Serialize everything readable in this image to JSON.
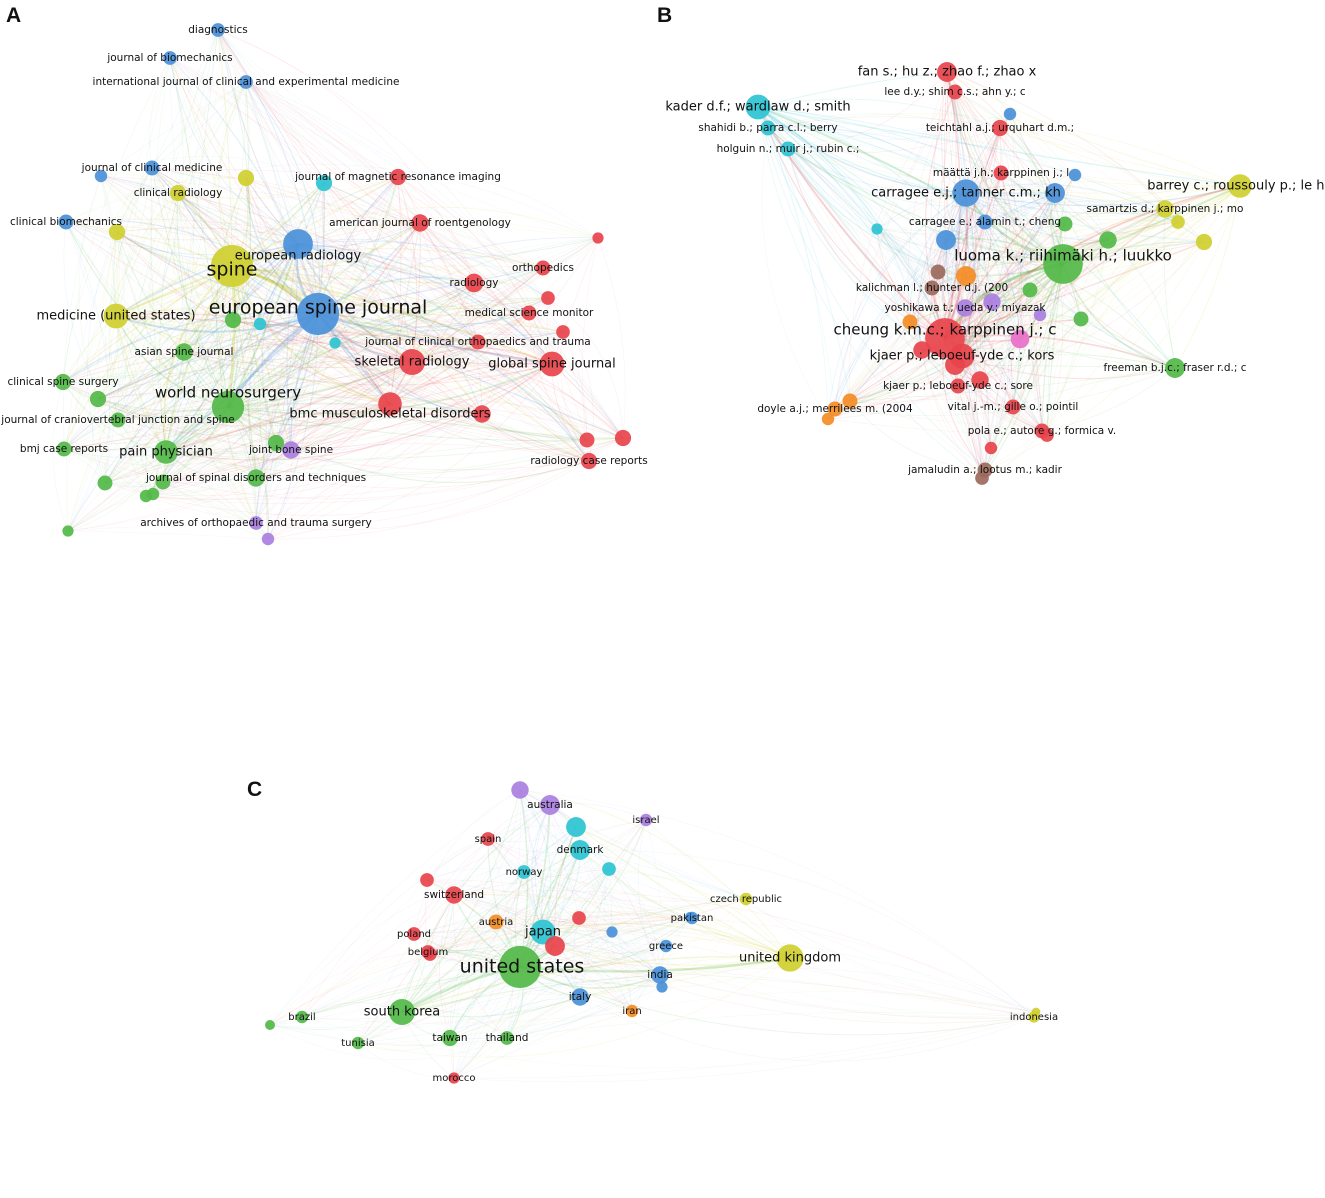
{
  "panels": {
    "A": {
      "label": "A",
      "nodes": [
        {
          "id": "spine",
          "label": "spine",
          "cluster": "yellow",
          "size": 3,
          "tier": 1
        },
        {
          "id": "european-spine-journal",
          "label": "european spine journal",
          "cluster": "blue",
          "size": 3,
          "tier": 1
        },
        {
          "id": "world-neurosurgery",
          "label": "world neurosurgery",
          "cluster": "green",
          "size": 2.2,
          "tier": 2
        },
        {
          "id": "european-radiology",
          "label": "european radiology",
          "cluster": "blue",
          "size": 2,
          "tier": 3
        },
        {
          "id": "skeletal-radiology",
          "label": "skeletal radiology",
          "cluster": "red",
          "size": 1.7,
          "tier": 3
        },
        {
          "id": "global-spine-journal",
          "label": "global spine journal",
          "cluster": "red",
          "size": 1.6,
          "tier": 3
        },
        {
          "id": "bmc-musculoskeletal-disorders",
          "label": "bmc musculoskeletal disorders",
          "cluster": "red",
          "size": 1.5,
          "tier": 3
        },
        {
          "id": "pain-physician",
          "label": "pain physician",
          "cluster": "green",
          "size": 1.5,
          "tier": 3
        },
        {
          "id": "medicine-united-states",
          "label": "medicine (united states)",
          "cluster": "yellow",
          "size": 1.6,
          "tier": 3
        },
        {
          "id": "diagnostics",
          "label": "diagnostics",
          "cluster": "blue",
          "size": 0.7,
          "tier": 4
        },
        {
          "id": "journal-of-biomechanics",
          "label": "journal of biomechanics",
          "cluster": "blue",
          "size": 0.7,
          "tier": 4
        },
        {
          "id": "international-journal-of-clinical-and-experimental-medicine",
          "label": "international journal of clinical and experimental medicine",
          "cluster": "blue",
          "size": 0.7,
          "tier": 4
        },
        {
          "id": "journal-of-clinical-medicine",
          "label": "journal of clinical medicine",
          "cluster": "blue",
          "size": 0.8,
          "tier": 4
        },
        {
          "id": "clinical-radiology",
          "label": "clinical radiology",
          "cluster": "yellow",
          "size": 0.9,
          "tier": 4
        },
        {
          "id": "journal-of-magnetic-resonance-imaging",
          "label": "journal of magnetic resonance imaging",
          "cluster": "red",
          "size": 0.9,
          "tier": 4
        },
        {
          "id": "american-journal-of-roentgenology",
          "label": "american journal of roentgenology",
          "cluster": "red",
          "size": 1,
          "tier": 4
        },
        {
          "id": "clinical-biomechanics",
          "label": "clinical biomechanics",
          "cluster": "blue",
          "size": 0.8,
          "tier": 4
        },
        {
          "id": "orthopedics",
          "label": "orthopedics",
          "cluster": "red",
          "size": 0.8,
          "tier": 4
        },
        {
          "id": "radiology",
          "label": "radiology",
          "cluster": "red",
          "size": 1.1,
          "tier": 4
        },
        {
          "id": "medical-science-monitor",
          "label": "medical science monitor",
          "cluster": "red",
          "size": 0.8,
          "tier": 4
        },
        {
          "id": "journal-of-clinical-orthopaedics-and-trauma",
          "label": "journal of clinical orthopaedics and trauma",
          "cluster": "red",
          "size": 0.8,
          "tier": 4
        },
        {
          "id": "asian-spine-journal",
          "label": "asian spine journal",
          "cluster": "green",
          "size": 1,
          "tier": 4
        },
        {
          "id": "clinical-spine-surgery",
          "label": "clinical spine surgery",
          "cluster": "green",
          "size": 0.9,
          "tier": 4
        },
        {
          "id": "journal-of-craniovertebral-junction-and-spine",
          "label": "journal of craniovertebral junction and spine",
          "cluster": "green",
          "size": 0.8,
          "tier": 4
        },
        {
          "id": "bmj-case-reports",
          "label": "bmj case reports",
          "cluster": "green",
          "size": 0.8,
          "tier": 4
        },
        {
          "id": "joint-bone-spine",
          "label": "joint bone spine",
          "cluster": "purple",
          "size": 1,
          "tier": 4
        },
        {
          "id": "journal-of-spinal-disorders-and-techniques",
          "label": "journal of spinal disorders and techniques",
          "cluster": "green",
          "size": 1,
          "tier": 4
        },
        {
          "id": "radiology-case-reports",
          "label": "radiology case reports",
          "cluster": "red",
          "size": 0.9,
          "tier": 4
        },
        {
          "id": "archives-of-orthopaedic-and-trauma-surgery",
          "label": "archives of orthopaedic and trauma surgery",
          "cluster": "purple",
          "size": 0.7,
          "tier": 4
        }
      ]
    },
    "B": {
      "label": "B",
      "nodes": [
        {
          "id": "luoma-k",
          "label": "luoma k.; riihimäki h.; luukko",
          "cluster": "green",
          "size": 2.8,
          "tier": 2
        },
        {
          "id": "cheung-kmc",
          "label": "cheung k.m.c.; karppinen j.; c",
          "cluster": "red",
          "size": 2.8,
          "tier": 2
        },
        {
          "id": "kader-df",
          "label": "kader d.f.; wardlaw d.; smith",
          "cluster": "cyan",
          "size": 1.6,
          "tier": 3
        },
        {
          "id": "carragee-ej",
          "label": "carragee e.j.; tanner c.m.; kh",
          "cluster": "blue",
          "size": 1.8,
          "tier": 3
        },
        {
          "id": "kjaer-p-1",
          "label": "kjaer p.; leboeuf-yde c.; kors",
          "cluster": "red",
          "size": 1.6,
          "tier": 3
        },
        {
          "id": "barrey-c",
          "label": "barrey c.; roussouly p.; le hu",
          "cluster": "yellow",
          "size": 1.5,
          "tier": 3
        },
        {
          "id": "fan-s",
          "label": "fan s.; hu z.; zhao f.; zhao x",
          "cluster": "red",
          "size": 1.2,
          "tier": 3
        },
        {
          "id": "freeman-bjc",
          "label": "freeman b.j.c.; fraser r.d.; c",
          "cluster": "green",
          "size": 1.2,
          "tier": 4
        },
        {
          "id": "lee-dy",
          "label": "lee d.y.; shim c.s.; ahn y.; c",
          "cluster": "red",
          "size": 0.8,
          "tier": 4
        },
        {
          "id": "shahidi-b",
          "label": "shahidi b.; parra c.l.; berry",
          "cluster": "cyan",
          "size": 0.8,
          "tier": 4
        },
        {
          "id": "holguin-n",
          "label": "holguin n.; muir j.; rubin c.;",
          "cluster": "cyan",
          "size": 0.8,
          "tier": 4
        },
        {
          "id": "teichtahl-aj",
          "label": "teichtahl a.j.; urquhart d.m.;",
          "cluster": "red",
          "size": 0.9,
          "tier": 4
        },
        {
          "id": "maatta-jh",
          "label": "määttä j.h.; karppinen j.; l",
          "cluster": "red",
          "size": 0.8,
          "tier": 4
        },
        {
          "id": "samartzis-d",
          "label": "samartzis d.; karppinen j.; mo",
          "cluster": "yellow",
          "size": 1,
          "tier": 4
        },
        {
          "id": "carragee-e",
          "label": "carragee e.; alamin t.; cheng",
          "cluster": "blue",
          "size": 0.8,
          "tier": 4
        },
        {
          "id": "kalichman-l",
          "label": "kalichman l.; hunter d.j. (200",
          "cluster": "brown",
          "size": 0.8,
          "tier": 4
        },
        {
          "id": "yoshikawa-t",
          "label": "yoshikawa t.; ueda y.; miyazak",
          "cluster": "purple",
          "size": 1,
          "tier": 4
        },
        {
          "id": "kjaer-p-2",
          "label": "kjaer p.; leboeuf-yde c.; sore",
          "cluster": "red",
          "size": 0.8,
          "tier": 4
        },
        {
          "id": "doyle-aj",
          "label": "doyle a.j.; merrilees m. (2004",
          "cluster": "orange",
          "size": 0.8,
          "tier": 4
        },
        {
          "id": "vital-jm",
          "label": "vital j.-m.; gille o.; pointil",
          "cluster": "red",
          "size": 0.8,
          "tier": 4
        },
        {
          "id": "pola-e",
          "label": "pola e.; autore g.; formica v.",
          "cluster": "red",
          "size": 0.8,
          "tier": 4
        },
        {
          "id": "jamaludin-a",
          "label": "jamaludin a.; lootus m.; kadir",
          "cluster": "brown",
          "size": 0.8,
          "tier": 4
        }
      ]
    },
    "C": {
      "label": "C",
      "nodes": [
        {
          "id": "united-states",
          "label": "united states",
          "cluster": "green",
          "size": 3,
          "tier": 1
        },
        {
          "id": "united-kingdom",
          "label": "united kingdom",
          "cluster": "yellow",
          "size": 1.8,
          "tier": 3
        },
        {
          "id": "japan",
          "label": "japan",
          "cluster": "cyan",
          "size": 1.6,
          "tier": 3
        },
        {
          "id": "south-korea",
          "label": "south korea",
          "cluster": "green",
          "size": 1.7,
          "tier": 3
        },
        {
          "id": "australia",
          "label": "australia",
          "cluster": "purple",
          "size": 1.2,
          "tier": 4
        },
        {
          "id": "denmark",
          "label": "denmark",
          "cluster": "cyan",
          "size": 1.2,
          "tier": 4
        },
        {
          "id": "switzerland",
          "label": "switzerland",
          "cluster": "red",
          "size": 1,
          "tier": 4
        },
        {
          "id": "india",
          "label": "india",
          "cluster": "blue",
          "size": 1,
          "tier": 4
        },
        {
          "id": "italy",
          "label": "italy",
          "cluster": "blue",
          "size": 1,
          "tier": 4
        },
        {
          "id": "taiwan",
          "label": "taiwan",
          "cluster": "green",
          "size": 0.9,
          "tier": 4
        },
        {
          "id": "thailand",
          "label": "thailand",
          "cluster": "green",
          "size": 0.7,
          "tier": 4
        },
        {
          "id": "israel",
          "label": "israel",
          "cluster": "purple",
          "size": 0.6,
          "tier": 5
        },
        {
          "id": "spain",
          "label": "spain",
          "cluster": "red",
          "size": 0.7,
          "tier": 5
        },
        {
          "id": "norway",
          "label": "norway",
          "cluster": "cyan",
          "size": 0.7,
          "tier": 5
        },
        {
          "id": "czech-republic",
          "label": "czech republic",
          "cluster": "yellow",
          "size": 0.6,
          "tier": 5
        },
        {
          "id": "austria",
          "label": "austria",
          "cluster": "orange",
          "size": 0.8,
          "tier": 5
        },
        {
          "id": "pakistan",
          "label": "pakistan",
          "cluster": "blue",
          "size": 0.6,
          "tier": 5
        },
        {
          "id": "poland",
          "label": "poland",
          "cluster": "red",
          "size": 0.7,
          "tier": 5
        },
        {
          "id": "belgium",
          "label": "belgium",
          "cluster": "red",
          "size": 0.7,
          "tier": 5
        },
        {
          "id": "greece",
          "label": "greece",
          "cluster": "blue",
          "size": 0.6,
          "tier": 5
        },
        {
          "id": "iran",
          "label": "iran",
          "cluster": "orange",
          "size": 0.6,
          "tier": 5
        },
        {
          "id": "brazil",
          "label": "brazil",
          "cluster": "green",
          "size": 0.6,
          "tier": 5
        },
        {
          "id": "tunisia",
          "label": "tunisia",
          "cluster": "green",
          "size": 0.6,
          "tier": 5
        },
        {
          "id": "morocco",
          "label": "morocco",
          "cluster": "red",
          "size": 0.5,
          "tier": 5
        },
        {
          "id": "indonesia",
          "label": "indonesia",
          "cluster": "yellow",
          "size": 0.5,
          "tier": 5
        }
      ]
    }
  },
  "colors": {
    "red": "#e8434b",
    "green": "#52b848",
    "blue": "#4a90d9",
    "yellow": "#cfcf2f",
    "purple": "#a97fe0",
    "cyan": "#2dc3d3",
    "orange": "#f48c24",
    "brown": "#9b6a5c",
    "pink": "#e86fc8"
  }
}
